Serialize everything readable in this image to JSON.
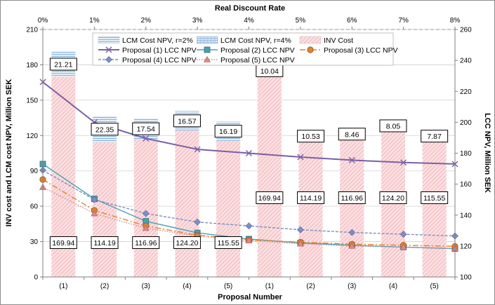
{
  "chart_data": {
    "type": "bar",
    "title": "",
    "xlabel": "Proposal Number",
    "x2label": "Real Discount Rate",
    "ylabel": "INV cost and LCM cost NPV, Million SEK",
    "y2label": "LCC NPV, Million SEK",
    "categories": [
      "(1)",
      "(2)",
      "(3)",
      "(4)",
      "(5)",
      "(1)",
      "(2)",
      "(3)",
      "(4)",
      "(5)"
    ],
    "ylim": [
      0,
      210
    ],
    "y_ticks": [
      0,
      30,
      60,
      90,
      120,
      150,
      180,
      210
    ],
    "y2lim": [
      100,
      260
    ],
    "y2_ticks": [
      100,
      120,
      140,
      160,
      180,
      200,
      220,
      240,
      260
    ],
    "top_axis": {
      "range": [
        0,
        8
      ],
      "ticks": [
        "0%",
        "1%",
        "2%",
        "3%",
        "4%",
        "5%",
        "6%",
        "7%",
        "8%"
      ]
    },
    "grid": "horizontal",
    "legend_position": "top-center",
    "bars": [
      {
        "name": "INV Cost",
        "values": [
          169.94,
          114.19,
          116.96,
          124.2,
          115.55,
          169.94,
          114.19,
          116.96,
          124.2,
          115.55
        ],
        "labels": [
          "169.94",
          "114.19",
          "116.96",
          "124.20",
          "115.55",
          "169.94",
          "114.19",
          "116.96",
          "124.20",
          "115.55"
        ]
      },
      {
        "name": "LCM Cost NPV, r=2%",
        "values": [
          21.21,
          22.35,
          17.54,
          16.57,
          16.19,
          null,
          null,
          null,
          null,
          null
        ],
        "labels": [
          "21.21",
          "22.35",
          "17.54",
          "16.57",
          "16.19"
        ]
      },
      {
        "name": "LCM Cost NPV, r=4%",
        "values": [
          null,
          null,
          null,
          null,
          null,
          10.04,
          10.53,
          8.46,
          8.05,
          7.87
        ],
        "labels": [
          "10.04",
          "10.53",
          "8.46",
          "8.05",
          "7.87"
        ]
      }
    ],
    "lines": [
      {
        "name": "Proposal (1) LCC NPV",
        "color": "#7a5fa6",
        "marker": "x",
        "x": [
          0,
          1,
          2,
          3,
          4,
          5,
          6,
          7,
          8
        ],
        "values": [
          226,
          200,
          189.5,
          182.5,
          180,
          177.5,
          175.5,
          174,
          173
        ]
      },
      {
        "name": "Proposal (2) LCC NPV",
        "color": "#4aa1b0",
        "marker": "square",
        "x": [
          0,
          1,
          2,
          3,
          4,
          5,
          6,
          7,
          8
        ],
        "values": [
          173,
          150.5,
          136,
          128.5,
          124.5,
          122,
          120.5,
          119.3,
          118.3
        ]
      },
      {
        "name": "Proposal (3) LCC NPV",
        "color": "#e3822c",
        "marker": "circle",
        "x": [
          0,
          1,
          2,
          3,
          4,
          5,
          6,
          7,
          8
        ],
        "values": [
          163,
          143,
          133,
          127,
          124,
          122.5,
          121.2,
          120.5,
          119.8
        ]
      },
      {
        "name": "Proposal (4) LCC NPV",
        "color": "#7d8fc2",
        "marker": "diamond",
        "x": [
          0,
          1,
          2,
          3,
          4,
          5,
          6,
          7,
          8
        ],
        "values": [
          169,
          150,
          141,
          135.5,
          133,
          130.5,
          128.8,
          127.6,
          126.5
        ]
      },
      {
        "name": "Proposal (5) LCC NPV",
        "color": "#d98a8a",
        "marker": "triangle",
        "x": [
          0,
          1,
          2,
          3,
          4,
          5,
          6,
          7,
          8
        ],
        "values": [
          158,
          141,
          131.5,
          126.5,
          123.5,
          121.5,
          120,
          119.2,
          118.4
        ]
      }
    ]
  },
  "colors": {
    "inv_fill": "#fbe0e2",
    "inv_hatch": "#ee9aa2",
    "lcm2_stripe": "#88b4dc",
    "lcm4_stripe": "#6e9cd0",
    "lcm_fill": "#e9f1fa",
    "grid": "#d0d0d0",
    "box_border": "#000000"
  }
}
